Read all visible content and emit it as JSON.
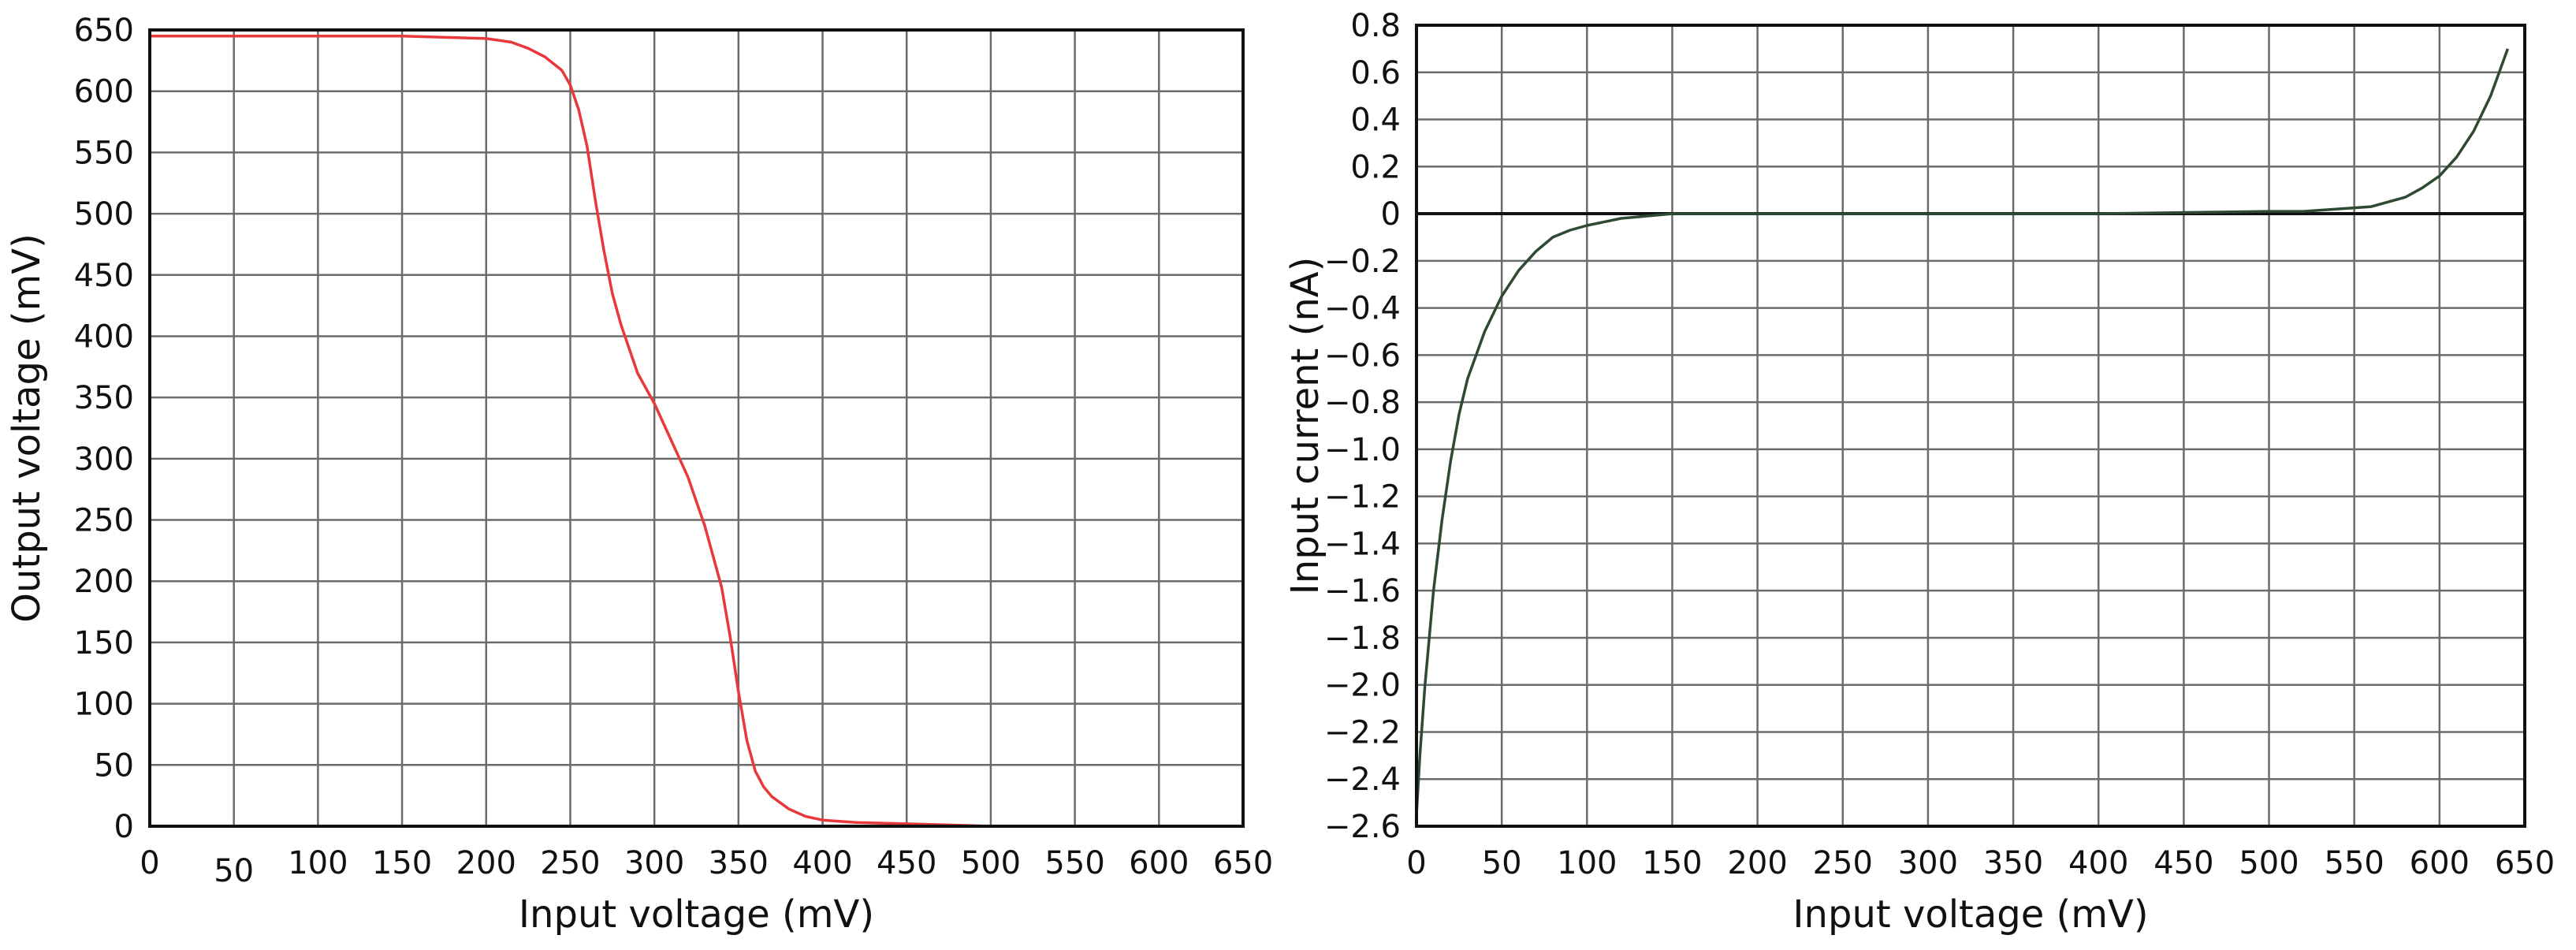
{
  "chart_data": [
    {
      "type": "line",
      "xlabel": "Input voltage (mV)",
      "ylabel": "Output voltage (mV)",
      "xlim": [
        0,
        650
      ],
      "ylim": [
        0,
        650
      ],
      "xticks": [
        0,
        50,
        100,
        150,
        200,
        250,
        300,
        350,
        400,
        450,
        500,
        550,
        600,
        650
      ],
      "yticks": [
        0,
        50,
        100,
        150,
        200,
        250,
        300,
        350,
        400,
        450,
        500,
        550,
        600,
        650
      ],
      "grid": true,
      "line_color": "#e8383b",
      "series": [
        {
          "x": [
            0,
            50,
            100,
            150,
            200,
            215,
            225,
            235,
            245,
            250,
            255,
            260,
            265,
            270,
            275,
            280,
            290,
            300,
            310,
            320,
            330,
            340,
            345,
            350,
            355,
            360,
            365,
            370,
            380,
            390,
            400,
            420,
            450,
            475,
            500,
            550,
            600,
            650
          ],
          "y": [
            645,
            645,
            645,
            645,
            643,
            640,
            635,
            628,
            617,
            605,
            585,
            555,
            510,
            470,
            435,
            410,
            370,
            345,
            315,
            285,
            245,
            195,
            155,
            110,
            70,
            45,
            32,
            24,
            14,
            8,
            5,
            3,
            2,
            1,
            0,
            0,
            0,
            0
          ]
        }
      ]
    },
    {
      "type": "line",
      "xlabel": "Input voltage (mV)",
      "ylabel": "Input current (nA)",
      "xlim": [
        0,
        650
      ],
      "ylim": [
        -2.6,
        0.8
      ],
      "xticks": [
        0,
        50,
        100,
        150,
        200,
        250,
        300,
        350,
        400,
        450,
        500,
        550,
        600,
        650
      ],
      "yticks": [
        0.8,
        0.6,
        0.4,
        0.2,
        0,
        -0.2,
        -0.4,
        -0.6,
        -0.8,
        -1.0,
        -1.2,
        -1.4,
        -1.6,
        -1.8,
        -2.0,
        -2.2,
        -2.4,
        -2.6
      ],
      "ytick_labels": [
        "0.8",
        "0.6",
        "0.4",
        "0.2",
        "0",
        "−0.2",
        "−0.4",
        "−0.6",
        "−0.8",
        "−1.0",
        "−1.2",
        "−1.4",
        "−1.6",
        "−1.8",
        "−2.0",
        "−2.2",
        "−2.4",
        "−2.6"
      ],
      "grid": true,
      "line_color": "#2f4a33",
      "series": [
        {
          "x": [
            0,
            2,
            5,
            10,
            15,
            20,
            25,
            30,
            40,
            50,
            60,
            70,
            80,
            90,
            100,
            120,
            150,
            200,
            300,
            400,
            500,
            520,
            540,
            560,
            570,
            580,
            590,
            600,
            610,
            620,
            630,
            640
          ],
          "y": [
            -2.55,
            -2.3,
            -2.0,
            -1.6,
            -1.3,
            -1.05,
            -0.85,
            -0.7,
            -0.5,
            -0.35,
            -0.24,
            -0.16,
            -0.1,
            -0.07,
            -0.05,
            -0.02,
            0,
            0,
            0,
            0,
            0.01,
            0.01,
            0.02,
            0.03,
            0.05,
            0.07,
            0.11,
            0.16,
            0.24,
            0.35,
            0.5,
            0.7
          ]
        }
      ]
    }
  ]
}
